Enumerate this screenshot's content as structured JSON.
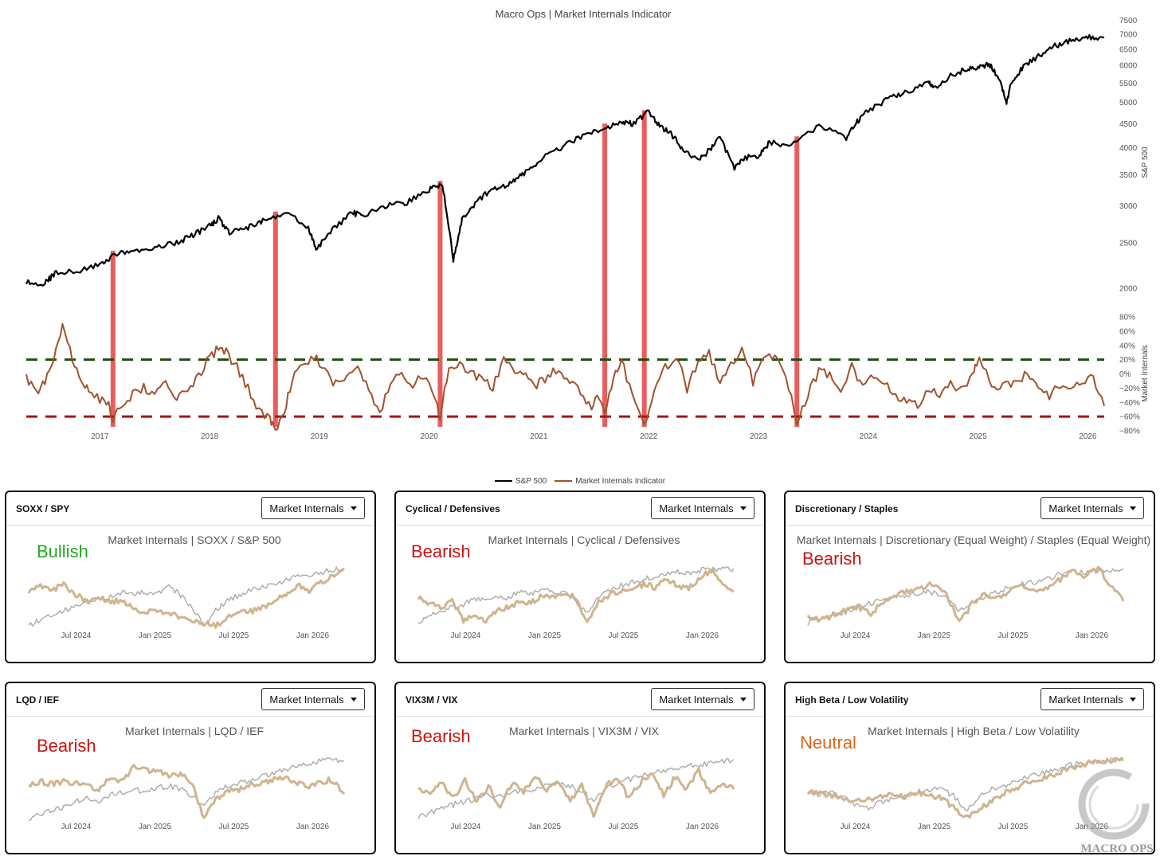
{
  "chart_data": [
    {
      "type": "line",
      "title": "Macro Ops | Market Internals Indicator",
      "x_ticks": [
        "2017",
        "2018",
        "2019",
        "2020",
        "2021",
        "2022",
        "2023",
        "2024",
        "2025",
        "2026"
      ],
      "x_range": [
        2016.33,
        2026.15
      ],
      "y_axis_top": {
        "label": "S&P 500",
        "scale": "log",
        "range": [
          1900,
          7600
        ],
        "ticks": [
          2000,
          2500,
          3000,
          3500,
          4000,
          4500,
          5000,
          5500,
          6000,
          6500,
          7000,
          7500
        ]
      },
      "y_axis_bottom": {
        "label": "Market Internals",
        "range": [
          -80,
          80
        ],
        "ticks": [
          "80%",
          "60%",
          "40%",
          "20%",
          "0%",
          "−20%",
          "−40%",
          "−60%",
          "−80%"
        ],
        "tick_values": [
          80,
          60,
          40,
          20,
          0,
          -20,
          -40,
          -60,
          -80
        ]
      },
      "thresholds": [
        {
          "value": 20,
          "color": "#1f4d12"
        },
        {
          "value": -60,
          "color": "#a31515"
        }
      ],
      "signal_dates": [
        2017.12,
        2018.6,
        2020.1,
        2021.6,
        2021.96,
        2023.35
      ],
      "series": [
        {
          "name": "S&P 500",
          "color": "#000000",
          "x": [
            2016.33,
            2016.5,
            2016.6,
            2016.8,
            2017.0,
            2017.12,
            2017.3,
            2017.5,
            2017.7,
            2017.85,
            2018.0,
            2018.08,
            2018.18,
            2018.35,
            2018.5,
            2018.7,
            2018.9,
            2018.97,
            2019.1,
            2019.3,
            2019.4,
            2019.6,
            2019.8,
            2020.0,
            2020.12,
            2020.22,
            2020.3,
            2020.45,
            2020.6,
            2020.75,
            2020.85,
            2021.0,
            2021.2,
            2021.4,
            2021.6,
            2021.75,
            2021.85,
            2022.0,
            2022.1,
            2022.2,
            2022.3,
            2022.45,
            2022.55,
            2022.65,
            2022.78,
            2022.85,
            2023.0,
            2023.1,
            2023.3,
            2023.55,
            2023.8,
            2023.9,
            2024.0,
            2024.2,
            2024.35,
            2024.55,
            2024.6,
            2024.75,
            2024.9,
            2025.0,
            2025.1,
            2025.2,
            2025.26,
            2025.3,
            2025.4,
            2025.55,
            2025.7,
            2025.85,
            2026.0,
            2026.15
          ],
          "y": [
            2060,
            2050,
            2160,
            2180,
            2250,
            2350,
            2400,
            2450,
            2500,
            2600,
            2720,
            2820,
            2640,
            2700,
            2800,
            2900,
            2700,
            2420,
            2650,
            2900,
            2850,
            3000,
            3050,
            3250,
            3330,
            2300,
            2800,
            3100,
            3280,
            3350,
            3500,
            3750,
            4000,
            4250,
            4400,
            4550,
            4500,
            4770,
            4450,
            4300,
            4000,
            3750,
            3950,
            4200,
            3600,
            3800,
            3850,
            4100,
            4050,
            4450,
            4200,
            4550,
            4800,
            5100,
            5250,
            5500,
            5350,
            5700,
            5900,
            5900,
            6050,
            5600,
            4950,
            5500,
            5900,
            6300,
            6600,
            6800,
            6900,
            6880
          ]
        },
        {
          "name": "Market Internals Indicator",
          "color": "#a0522d",
          "x": [
            2016.33,
            2016.42,
            2016.5,
            2016.58,
            2016.66,
            2016.75,
            2016.83,
            2016.9,
            2017.0,
            2017.08,
            2017.12,
            2017.2,
            2017.3,
            2017.4,
            2017.5,
            2017.6,
            2017.7,
            2017.8,
            2017.9,
            2018.0,
            2018.08,
            2018.15,
            2018.25,
            2018.35,
            2018.45,
            2018.55,
            2018.6,
            2018.68,
            2018.75,
            2018.85,
            2018.95,
            2019.05,
            2019.15,
            2019.25,
            2019.35,
            2019.45,
            2019.55,
            2019.65,
            2019.75,
            2019.85,
            2019.95,
            2020.05,
            2020.1,
            2020.18,
            2020.28,
            2020.38,
            2020.48,
            2020.58,
            2020.68,
            2020.78,
            2020.88,
            2020.98,
            2021.08,
            2021.18,
            2021.28,
            2021.38,
            2021.48,
            2021.55,
            2021.6,
            2021.68,
            2021.75,
            2021.85,
            2021.96,
            2022.05,
            2022.15,
            2022.25,
            2022.35,
            2022.45,
            2022.55,
            2022.65,
            2022.75,
            2022.85,
            2022.95,
            2023.05,
            2023.15,
            2023.25,
            2023.35,
            2023.45,
            2023.55,
            2023.65,
            2023.75,
            2023.85,
            2023.95,
            2024.05,
            2024.15,
            2024.25,
            2024.35,
            2024.45,
            2024.55,
            2024.65,
            2024.75,
            2024.85,
            2024.95,
            2025.0,
            2025.05,
            2025.15,
            2025.25,
            2025.35,
            2025.45,
            2025.55,
            2025.65,
            2025.75,
            2025.85,
            2025.95,
            2026.05,
            2026.15
          ],
          "y": [
            -5,
            -25,
            -10,
            15,
            72,
            20,
            -10,
            -25,
            -35,
            -45,
            -62,
            -40,
            -30,
            -20,
            -28,
            -10,
            -35,
            -25,
            -5,
            25,
            35,
            30,
            10,
            -20,
            -50,
            -65,
            -78,
            -55,
            -10,
            15,
            25,
            5,
            -15,
            0,
            10,
            -25,
            -60,
            -10,
            0,
            -15,
            -5,
            -30,
            -62,
            10,
            15,
            0,
            -10,
            -20,
            25,
            5,
            -5,
            -15,
            -5,
            10,
            -10,
            -25,
            -45,
            -30,
            -62,
            0,
            20,
            -30,
            -70,
            -25,
            10,
            25,
            -20,
            15,
            30,
            -15,
            15,
            35,
            -10,
            20,
            30,
            0,
            -72,
            -30,
            5,
            0,
            -25,
            10,
            -20,
            -5,
            -15,
            -30,
            -40,
            -45,
            -20,
            -35,
            -10,
            -25,
            -5,
            20,
            10,
            -20,
            -15,
            -10,
            0,
            -20,
            -30,
            -15,
            -25,
            -10,
            -5,
            -45
          ]
        }
      ]
    },
    {
      "type": "line",
      "panel": "SOXX / SPY",
      "title": "Market Internals | SOXX / S&P 500",
      "x_ticks": [
        "Jul 2024",
        "Jan 2025",
        "Jul 2025",
        "Jan 2026"
      ],
      "series": [
        {
          "name": "",
          "color": "#cfb48e",
          "values": [
            0.62,
            0.68,
            0.62,
            0.72,
            0.55,
            0.45,
            0.52,
            0.42,
            0.48,
            0.3,
            0.28,
            0.3,
            0.25,
            0.2,
            0.15,
            0.1,
            0.05,
            0.18,
            0.3,
            0.28,
            0.35,
            0.45,
            0.55,
            0.7,
            0.62,
            0.75,
            0.85,
            0.98
          ]
        },
        {
          "name": "",
          "color": "#aaaaaa",
          "values": [
            0.05,
            0.15,
            0.22,
            0.3,
            0.35,
            0.45,
            0.5,
            0.52,
            0.6,
            0.55,
            0.6,
            0.55,
            0.68,
            0.55,
            0.35,
            0.05,
            0.3,
            0.45,
            0.55,
            0.62,
            0.68,
            0.72,
            0.78,
            0.85,
            0.88,
            0.92,
            0.95,
            0.98
          ]
        }
      ]
    },
    {
      "type": "line",
      "panel": "Cyclical / Defensives",
      "title": "Market Internals | Cyclical / Defensives",
      "x_ticks": [
        "Jul 2024",
        "Jan 2025",
        "Jul 2025",
        "Jan 2026"
      ],
      "series": [
        {
          "name": "",
          "color": "#cfb48e",
          "values": [
            0.5,
            0.42,
            0.35,
            0.45,
            0.15,
            0.22,
            0.1,
            0.3,
            0.35,
            0.45,
            0.42,
            0.55,
            0.52,
            0.58,
            0.5,
            0.08,
            0.45,
            0.55,
            0.62,
            0.65,
            0.72,
            0.68,
            0.8,
            0.7,
            0.65,
            0.82,
            0.95,
            0.75,
            0.6
          ]
        },
        {
          "name": "",
          "color": "#aaaaaa",
          "values": [
            0.1,
            0.22,
            0.28,
            0.35,
            0.4,
            0.48,
            0.45,
            0.52,
            0.5,
            0.6,
            0.55,
            0.65,
            0.6,
            0.58,
            0.45,
            0.25,
            0.5,
            0.62,
            0.7,
            0.75,
            0.8,
            0.85,
            0.9,
            0.92,
            0.88,
            0.95,
            0.98,
            0.96,
            0.97
          ]
        }
      ]
    },
    {
      "type": "line",
      "panel": "Discretionary / Staples",
      "title": "Market Internals | Discretionary (Equal Weight) / Staples (Equal Weight)",
      "x_ticks": [
        "Jul 2024",
        "Jan 2025",
        "Jul 2025",
        "Jan 2026"
      ],
      "series": [
        {
          "name": "",
          "color": "#cfb48e",
          "values": [
            0.2,
            0.15,
            0.22,
            0.3,
            0.35,
            0.25,
            0.45,
            0.55,
            0.6,
            0.68,
            0.72,
            0.55,
            0.1,
            0.4,
            0.55,
            0.5,
            0.62,
            0.7,
            0.6,
            0.68,
            0.8,
            0.95,
            0.85,
            0.98,
            0.7,
            0.45
          ]
        },
        {
          "name": "",
          "color": "#aaaaaa",
          "values": [
            0.1,
            0.18,
            0.25,
            0.28,
            0.35,
            0.42,
            0.48,
            0.52,
            0.55,
            0.6,
            0.58,
            0.5,
            0.3,
            0.42,
            0.5,
            0.6,
            0.68,
            0.72,
            0.75,
            0.82,
            0.88,
            0.92,
            0.9,
            0.95,
            0.93,
            0.97
          ]
        }
      ]
    },
    {
      "type": "line",
      "panel": "LQD / IEF",
      "title": "Market Internals | LQD / IEF",
      "x_ticks": [
        "Jul 2024",
        "Jan 2025",
        "Jul 2025",
        "Jan 2026"
      ],
      "series": [
        {
          "name": "",
          "color": "#cfb48e",
          "values": [
            0.55,
            0.62,
            0.58,
            0.62,
            0.6,
            0.55,
            0.48,
            0.7,
            0.62,
            0.88,
            0.8,
            0.78,
            0.72,
            0.75,
            0.6,
            0.0,
            0.35,
            0.45,
            0.5,
            0.58,
            0.6,
            0.65,
            0.7,
            0.6,
            0.55,
            0.62,
            0.65,
            0.42
          ]
        },
        {
          "name": "",
          "color": "#aaaaaa",
          "values": [
            0.0,
            0.1,
            0.15,
            0.2,
            0.3,
            0.35,
            0.3,
            0.4,
            0.45,
            0.5,
            0.45,
            0.52,
            0.55,
            0.5,
            0.4,
            0.2,
            0.45,
            0.55,
            0.6,
            0.65,
            0.7,
            0.75,
            0.82,
            0.88,
            0.9,
            0.95,
            0.98,
            0.96
          ]
        }
      ]
    },
    {
      "type": "line",
      "panel": "VIX3M / VIX",
      "title": "Market Internals | VIX3M / VIX",
      "x_ticks": [
        "Jul 2024",
        "Jan 2025",
        "Jul 2025",
        "Jan 2026"
      ],
      "series": [
        {
          "name": "",
          "color": "#cfb48e",
          "values": [
            0.5,
            0.4,
            0.6,
            0.35,
            0.65,
            0.3,
            0.55,
            0.2,
            0.6,
            0.45,
            0.7,
            0.5,
            0.65,
            0.3,
            0.6,
            0.05,
            0.55,
            0.7,
            0.35,
            0.6,
            0.75,
            0.4,
            0.7,
            0.5,
            0.8,
            0.45,
            0.6,
            0.5
          ]
        },
        {
          "name": "",
          "color": "#aaaaaa",
          "values": [
            0.05,
            0.12,
            0.2,
            0.25,
            0.3,
            0.35,
            0.4,
            0.38,
            0.45,
            0.48,
            0.5,
            0.55,
            0.58,
            0.55,
            0.45,
            0.3,
            0.5,
            0.6,
            0.65,
            0.7,
            0.75,
            0.8,
            0.85,
            0.88,
            0.9,
            0.92,
            0.95,
            0.98
          ]
        }
      ]
    },
    {
      "type": "line",
      "panel": "High Beta / Low Volatility",
      "title": "Market Internals | High Beta / Low Volatility",
      "x_ticks": [
        "Jul 2024",
        "Jan 2025",
        "Jul 2025",
        "Jan 2026"
      ],
      "series": [
        {
          "name": "",
          "color": "#cfb48e",
          "values": [
            0.45,
            0.42,
            0.4,
            0.35,
            0.3,
            0.32,
            0.4,
            0.42,
            0.38,
            0.45,
            0.42,
            0.35,
            0.2,
            0.05,
            0.15,
            0.3,
            0.42,
            0.5,
            0.6,
            0.65,
            0.72,
            0.8,
            0.85,
            0.92,
            0.96,
            0.95,
            0.98
          ]
        },
        {
          "name": "",
          "color": "#aaaaaa",
          "values": [
            0.4,
            0.42,
            0.45,
            0.35,
            0.25,
            0.2,
            0.28,
            0.35,
            0.4,
            0.45,
            0.5,
            0.48,
            0.4,
            0.15,
            0.35,
            0.48,
            0.55,
            0.62,
            0.7,
            0.75,
            0.8,
            0.85,
            0.9,
            0.93,
            0.95,
            0.97,
            0.96
          ]
        }
      ]
    }
  ],
  "legend": {
    "sp500": "S&P 500",
    "internals": "Market Internals Indicator"
  },
  "panels": [
    {
      "title": "SOXX / SPY",
      "dropdown": "Market Internals",
      "signal": "Bullish",
      "signal_color": "#22aa22"
    },
    {
      "title": "Cyclical / Defensives",
      "dropdown": "Market Internals",
      "signal": "Bearish",
      "signal_color": "#cc1111"
    },
    {
      "title": "Discretionary / Staples",
      "dropdown": "Market Internals",
      "signal": "Bearish",
      "signal_color": "#cc1111"
    },
    {
      "title": "LQD / IEF",
      "dropdown": "Market Internals",
      "signal": "Bearish",
      "signal_color": "#cc1111"
    },
    {
      "title": "VIX3M / VIX",
      "dropdown": "Market Internals",
      "signal": "Bearish",
      "signal_color": "#cc1111"
    },
    {
      "title": "High Beta / Low Volatility",
      "dropdown": "Market Internals",
      "signal": "Neutral",
      "signal_color": "#e0641c"
    }
  ],
  "watermark": "MACRO OPS"
}
